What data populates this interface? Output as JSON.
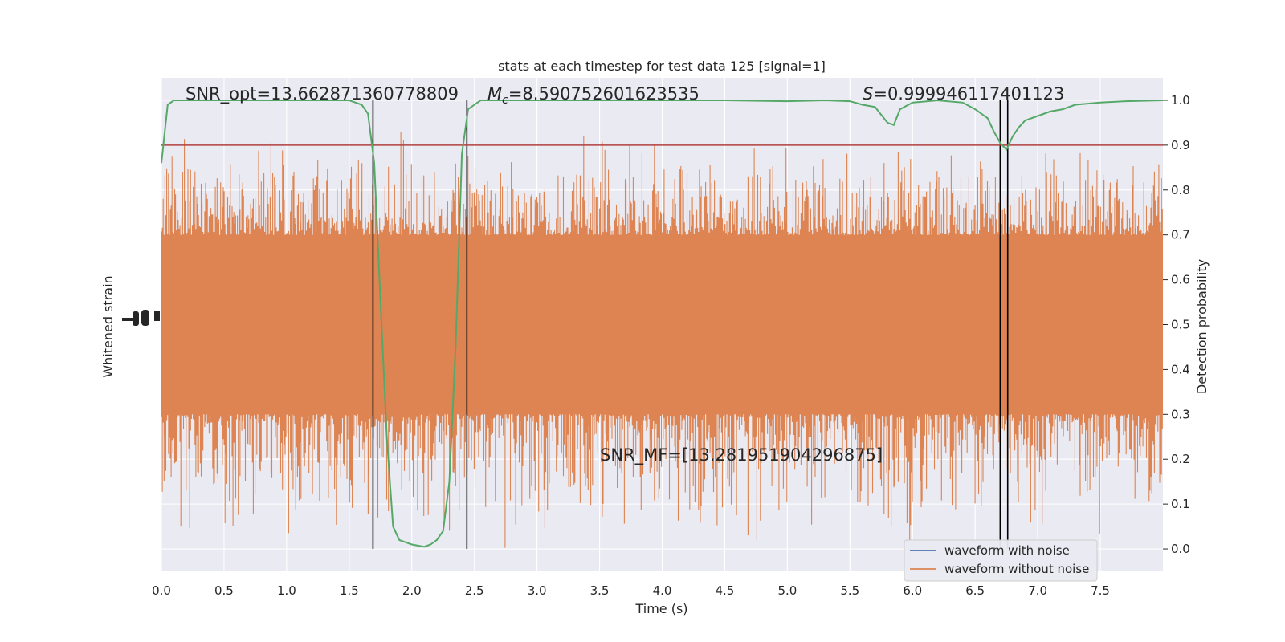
{
  "chart_data": {
    "type": "line",
    "title": "stats at each timestep for test data 125 [signal=1]",
    "xlabel": "Time (s)",
    "ylabel_left": "Whitened strain",
    "ylabel_right": "Detection probability",
    "xlim": [
      0.0,
      8.0
    ],
    "ylim_right": [
      -0.05,
      1.05
    ],
    "x_ticks": [
      "0.0",
      "0.5",
      "1.0",
      "1.5",
      "2.0",
      "2.5",
      "3.0",
      "3.5",
      "4.0",
      "4.5",
      "5.0",
      "5.5",
      "6.0",
      "6.5",
      "7.0",
      "7.5"
    ],
    "y_ticks_right": [
      "0.0",
      "0.1",
      "0.2",
      "0.3",
      "0.4",
      "0.5",
      "0.6",
      "0.7",
      "0.8",
      "0.9",
      "1.0"
    ],
    "grid": true,
    "legend_position": "lower-right",
    "annotations": {
      "snr_opt": "SNR_opt=13.662871360778809",
      "chirp_mass": "=8.590752601623535",
      "chirp_mass_symbol": "M",
      "chirp_mass_subscript": "c",
      "s_value": "=0.999946117401123",
      "s_symbol": "S",
      "snr_mf": "SNR_MF=[13.281951904296875]"
    },
    "threshold": 0.9,
    "vertical_lines_x": [
      1.69,
      2.44,
      6.7,
      6.76
    ],
    "series": [
      {
        "name": "waveform with noise",
        "color": "#4c72b0"
      },
      {
        "name": "waveform without noise",
        "color": "#dd8452",
        "band_core": [
          0.3,
          0.7
        ],
        "band_extreme": [
          0.0,
          0.93
        ]
      },
      {
        "color": "#55a868",
        "x": [
          0.0,
          0.05,
          0.1,
          0.2,
          0.5,
          1.0,
          1.5,
          1.6,
          1.65,
          1.7,
          1.75,
          1.8,
          1.85,
          1.9,
          1.95,
          2.0,
          2.1,
          2.15,
          2.2,
          2.25,
          2.3,
          2.35,
          2.4,
          2.45,
          2.5,
          2.55,
          2.6,
          3.0,
          3.5,
          4.0,
          4.5,
          5.0,
          5.3,
          5.5,
          5.6,
          5.7,
          5.8,
          5.85,
          5.9,
          6.0,
          6.2,
          6.4,
          6.5,
          6.6,
          6.65,
          6.7,
          6.75,
          6.8,
          6.85,
          6.9,
          7.0,
          7.1,
          7.2,
          7.3,
          7.5,
          7.7,
          8.0
        ],
        "y": [
          0.86,
          0.99,
          1.0,
          1.0,
          1.0,
          1.0,
          1.0,
          0.99,
          0.97,
          0.86,
          0.55,
          0.25,
          0.05,
          0.02,
          0.015,
          0.01,
          0.005,
          0.01,
          0.02,
          0.04,
          0.15,
          0.45,
          0.88,
          0.98,
          0.99,
          1.0,
          1.0,
          1.0,
          1.0,
          1.0,
          1.0,
          0.998,
          1.0,
          0.998,
          0.99,
          0.985,
          0.95,
          0.945,
          0.98,
          0.995,
          1.0,
          0.995,
          0.98,
          0.96,
          0.93,
          0.905,
          0.89,
          0.92,
          0.94,
          0.955,
          0.965,
          0.975,
          0.98,
          0.99,
          0.995,
          0.998,
          1.0
        ]
      }
    ]
  }
}
